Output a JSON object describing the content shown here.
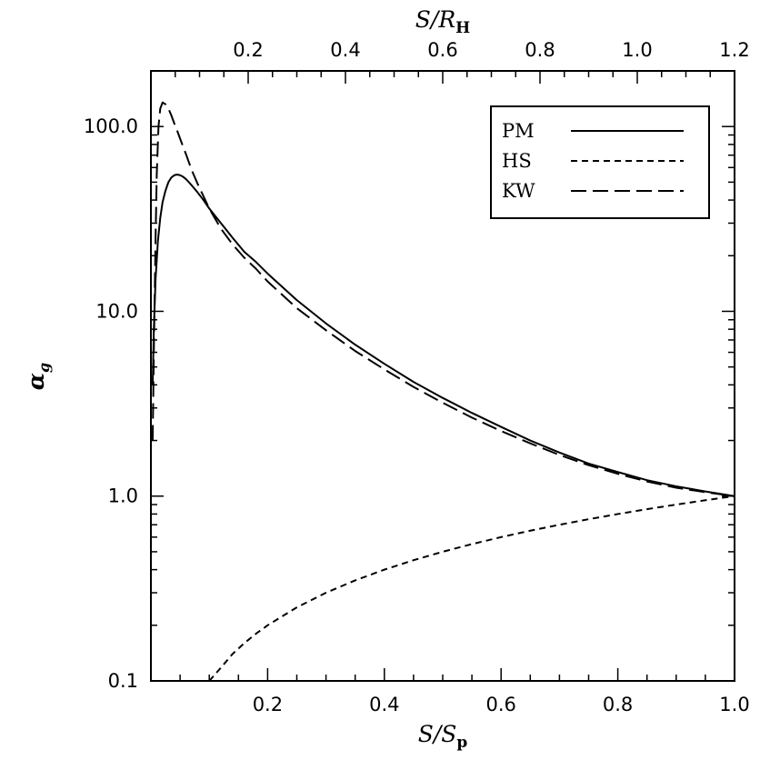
{
  "chart_data": {
    "type": "line",
    "xlabel": "S/S_p",
    "xlabel_parts": {
      "main": "S/S",
      "sub": "p"
    },
    "x2label": "S/R_H",
    "x2label_parts": {
      "main": "S/R",
      "sub": "H"
    },
    "ylabel": "α_g",
    "ylabel_parts": {
      "main": "α",
      "sub": "g"
    },
    "yscale": "log",
    "xlim": [
      0.0,
      1.0
    ],
    "ylim": [
      0.1,
      200
    ],
    "x2lim": [
      0.0,
      1.2
    ],
    "x_ticks": [
      "0.2",
      "0.4",
      "0.6",
      "0.8",
      "1.0"
    ],
    "x2_ticks": [
      "0.2",
      "0.4",
      "0.6",
      "0.8",
      "1.0",
      "1.2"
    ],
    "y_ticks": [
      "0.1",
      "1.0",
      "10.0",
      "100.0"
    ],
    "legend_position": "top-right",
    "series": [
      {
        "name": "PM",
        "dash": "solid",
        "x": [
          0.003,
          0.005,
          0.008,
          0.012,
          0.016,
          0.02,
          0.025,
          0.03,
          0.035,
          0.04,
          0.045,
          0.05,
          0.055,
          0.06,
          0.065,
          0.07,
          0.08,
          0.09,
          0.1,
          0.12,
          0.14,
          0.16,
          0.18,
          0.2,
          0.25,
          0.3,
          0.35,
          0.4,
          0.45,
          0.5,
          0.55,
          0.6,
          0.65,
          0.7,
          0.75,
          0.8,
          0.85,
          0.9,
          0.95,
          1.0
        ],
        "y": [
          4,
          8,
          15,
          24,
          32,
          39,
          45,
          50,
          53,
          54.5,
          55,
          54.5,
          53.5,
          52,
          50,
          48,
          44,
          40,
          36,
          30,
          25,
          21,
          18.5,
          16,
          11.5,
          8.6,
          6.6,
          5.2,
          4.15,
          3.4,
          2.82,
          2.37,
          2.0,
          1.72,
          1.5,
          1.35,
          1.22,
          1.13,
          1.06,
          1.0
        ]
      },
      {
        "name": "HS",
        "dash": "short-dash",
        "x": [
          0.1,
          0.12,
          0.14,
          0.16,
          0.18,
          0.2,
          0.25,
          0.3,
          0.35,
          0.4,
          0.45,
          0.5,
          0.55,
          0.6,
          0.65,
          0.7,
          0.75,
          0.8,
          0.85,
          0.9,
          0.95,
          1.0
        ],
        "y": [
          0.1,
          0.118,
          0.14,
          0.16,
          0.18,
          0.2,
          0.25,
          0.3,
          0.35,
          0.4,
          0.45,
          0.5,
          0.55,
          0.6,
          0.65,
          0.7,
          0.75,
          0.8,
          0.85,
          0.9,
          0.95,
          1.0
        ]
      },
      {
        "name": "KW",
        "dash": "long-dash",
        "x": [
          0.003,
          0.005,
          0.008,
          0.01,
          0.013,
          0.016,
          0.02,
          0.025,
          0.03,
          0.035,
          0.04,
          0.045,
          0.05,
          0.055,
          0.06,
          0.07,
          0.08,
          0.09,
          0.1,
          0.12,
          0.14,
          0.16,
          0.18,
          0.2,
          0.25,
          0.3,
          0.35,
          0.4,
          0.45,
          0.5,
          0.55,
          0.6,
          0.65,
          0.7,
          0.75,
          0.8,
          0.85,
          0.9,
          0.95,
          1.0
        ],
        "y": [
          2,
          6,
          25,
          55,
          100,
          125,
          135,
          132,
          125,
          115,
          104,
          95,
          86,
          78,
          71,
          58,
          49,
          42,
          36,
          28,
          23,
          19.5,
          17,
          14.5,
          10.4,
          7.9,
          6.1,
          4.85,
          3.9,
          3.2,
          2.66,
          2.25,
          1.93,
          1.67,
          1.47,
          1.32,
          1.2,
          1.11,
          1.05,
          1.0
        ]
      }
    ]
  }
}
